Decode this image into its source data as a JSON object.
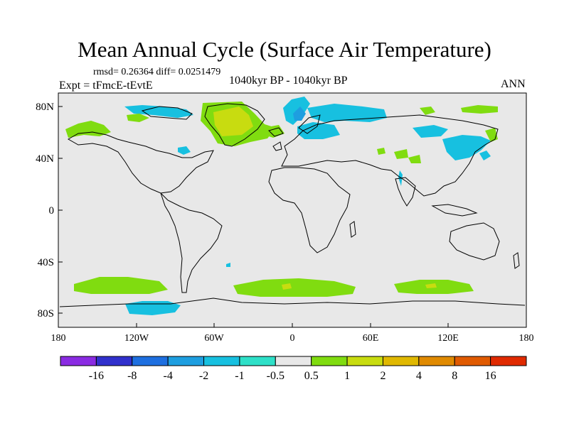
{
  "title": "Mean Annual Cycle (Surface Air Temperature)",
  "stats_line": "rmsd= 0.26364 diff= 0.0251479",
  "experiment_line": "Expt = tFmcE-tEvtE",
  "period_label": "1040kyr BP - 1040kyr BP",
  "season_label": "ANN",
  "lat_labels": [
    "80N",
    "40N",
    "0",
    "40S",
    "80S"
  ],
  "lon_labels": [
    "180",
    "120W",
    "60W",
    "0",
    "60E",
    "120E",
    "180"
  ],
  "colorbar": {
    "colors": [
      "#8a2be2",
      "#3030cc",
      "#1e6fe0",
      "#1e9ee0",
      "#17c0e0",
      "#2ee0c8",
      "#e8e8e8",
      "#80dc10",
      "#c8dc10",
      "#e0b800",
      "#e08a00",
      "#e05a00",
      "#e02a00"
    ],
    "labels": [
      "-16",
      "-8",
      "-4",
      "-2",
      "-1",
      "-0.5",
      "0.5",
      "1",
      "2",
      "4",
      "8",
      "16"
    ]
  },
  "colors": {
    "background_field": "#e8e8e8",
    "coast": "#000000"
  }
}
